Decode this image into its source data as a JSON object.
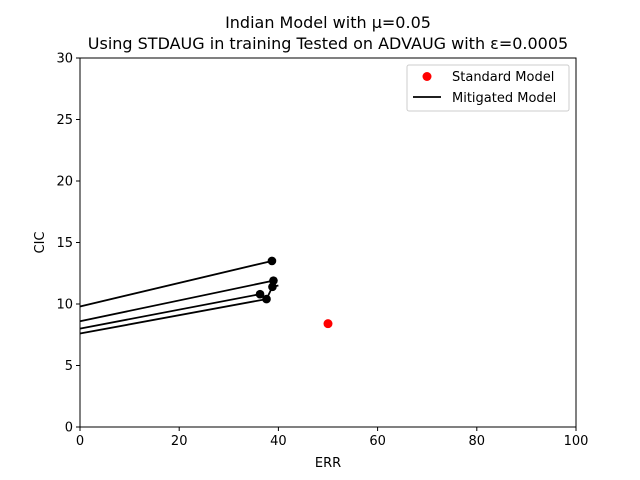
{
  "chart_data": {
    "type": "scatter",
    "title": "Indian Model with μ=0.05",
    "subtitle": "Using STDAUG in training Tested on ADVAUG with ε=0.0005",
    "xlabel": "ERR",
    "ylabel": "CIC",
    "xlim": [
      0,
      100
    ],
    "ylim": [
      0,
      30
    ],
    "xticks": [
      0,
      20,
      40,
      60,
      80,
      100
    ],
    "yticks": [
      0,
      5,
      10,
      15,
      20,
      25,
      30
    ],
    "grid": false,
    "legend_position": "top-right",
    "series": [
      {
        "name": "Standard Model",
        "kind": "scatter",
        "color": "#ff0000",
        "points": [
          [
            50.0,
            8.4
          ]
        ]
      },
      {
        "name": "Mitigated Model",
        "kind": "line",
        "color": "#000000",
        "marker_color": "#000000",
        "lines": [
          [
            [
              0,
              9.8
            ],
            [
              38.7,
              13.5
            ]
          ],
          [
            [
              0,
              8.6
            ],
            [
              39.0,
              11.9
            ]
          ],
          [
            [
              0,
              8.0
            ],
            [
              36.3,
              10.8
            ]
          ],
          [
            [
              0,
              7.6
            ],
            [
              37.6,
              10.4
            ]
          ],
          [
            [
              37.6,
              10.4
            ],
            [
              38.8,
              11.4
            ],
            [
              40.0,
              11.5
            ]
          ]
        ],
        "points": [
          [
            38.7,
            13.5
          ],
          [
            39.0,
            11.9
          ],
          [
            36.3,
            10.8
          ],
          [
            37.6,
            10.4
          ],
          [
            38.8,
            11.4
          ]
        ]
      }
    ]
  }
}
